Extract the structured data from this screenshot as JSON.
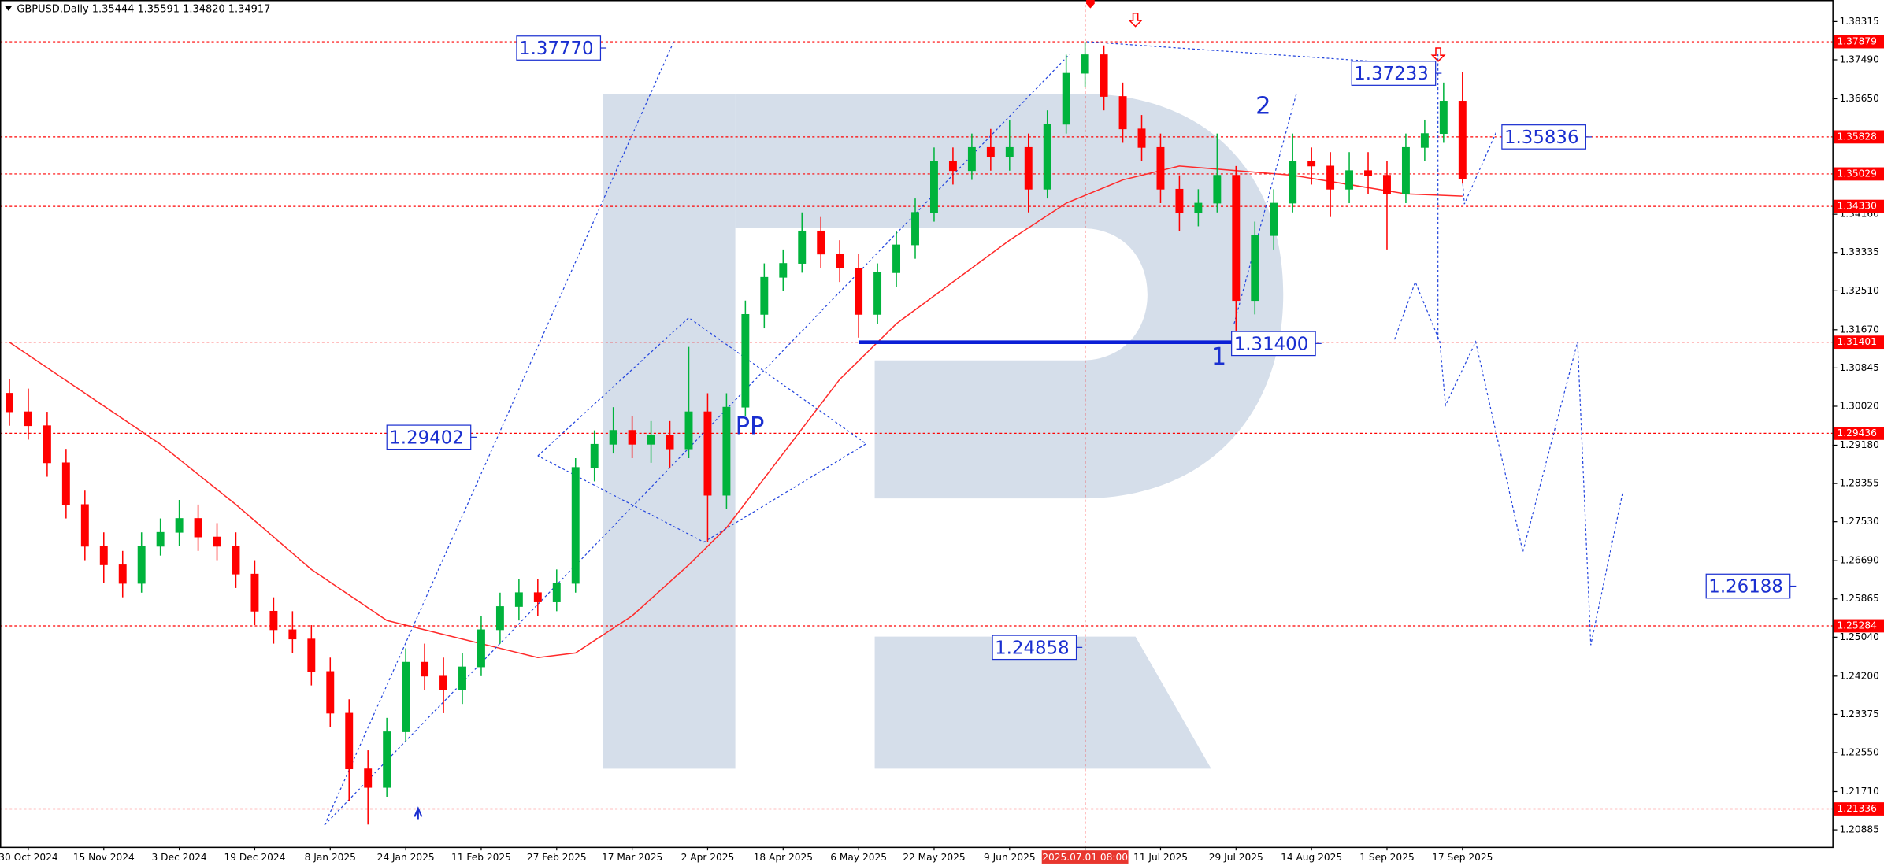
{
  "chart_data": {
    "type": "candlestick",
    "title": "GBPUSD,Daily  1.35444 1.35591 1.34820 1.34917",
    "categories": [
      null,
      "30 Oct 2024",
      null,
      null,
      null,
      "15 Nov 2024",
      null,
      null,
      null,
      "3 Dec 2024",
      null,
      null,
      null,
      "19 Dec 2024",
      null,
      null,
      null,
      "8 Jan 2025",
      null,
      null,
      null,
      "24 Jan 2025",
      null,
      null,
      null,
      "11 Feb 2025",
      null,
      null,
      null,
      "27 Feb 2025",
      null,
      null,
      null,
      "17 Mar 2025",
      null,
      null,
      null,
      "2 Apr 2025",
      null,
      null,
      null,
      "18 Apr 2025",
      null,
      null,
      null,
      "6 May 2025",
      null,
      null,
      null,
      "22 May 2025",
      null,
      null,
      null,
      "9 Jun 2025",
      null,
      null,
      null,
      "2025.07.01 08:00",
      null,
      null,
      null,
      "11 Jul 2025",
      null,
      null,
      null,
      "29 Jul 2025",
      null,
      null,
      null,
      "14 Aug 2025",
      null,
      null,
      null,
      "1 Sep 2025",
      null,
      null,
      null,
      "17 Sep 2025"
    ],
    "open": [
      1.303,
      1.299,
      1.296,
      1.288,
      1.279,
      1.27,
      1.266,
      1.262,
      1.27,
      1.273,
      1.276,
      1.272,
      1.27,
      1.264,
      1.256,
      1.252,
      1.25,
      1.243,
      1.234,
      1.222,
      1.218,
      1.23,
      1.245,
      1.242,
      1.239,
      1.244,
      1.252,
      1.257,
      1.26,
      1.258,
      1.262,
      1.287,
      1.292,
      1.295,
      1.292,
      1.294,
      1.291,
      1.299,
      1.281,
      1.3,
      1.32,
      1.328,
      1.331,
      1.338,
      1.333,
      1.33,
      1.32,
      1.329,
      1.335,
      1.342,
      1.353,
      1.351,
      1.356,
      1.354,
      1.356,
      1.347,
      1.361,
      1.372,
      1.376,
      1.367,
      1.36,
      1.356,
      1.347,
      1.342,
      1.344,
      1.35,
      1.323,
      1.337,
      1.344,
      1.353,
      1.352,
      1.347,
      1.351,
      1.35,
      1.346,
      1.356,
      1.359,
      1.366
    ],
    "high": [
      1.306,
      1.304,
      1.299,
      1.291,
      1.282,
      1.273,
      1.269,
      1.273,
      1.276,
      1.28,
      1.279,
      1.275,
      1.273,
      1.267,
      1.259,
      1.256,
      1.253,
      1.246,
      1.237,
      1.226,
      1.233,
      1.248,
      1.249,
      1.246,
      1.247,
      1.255,
      1.26,
      1.263,
      1.263,
      1.265,
      1.289,
      1.295,
      1.3,
      1.298,
      1.297,
      1.297,
      1.313,
      1.303,
      1.303,
      1.323,
      1.331,
      1.334,
      1.342,
      1.341,
      1.336,
      1.333,
      1.331,
      1.338,
      1.345,
      1.356,
      1.356,
      1.359,
      1.36,
      1.362,
      1.359,
      1.364,
      1.376,
      1.3788,
      1.378,
      1.37,
      1.363,
      1.359,
      1.35,
      1.347,
      1.359,
      1.352,
      1.34,
      1.347,
      1.359,
      1.356,
      1.355,
      1.355,
      1.355,
      1.353,
      1.359,
      1.362,
      1.37,
      1.3723
    ],
    "low": [
      1.296,
      1.293,
      1.285,
      1.276,
      1.267,
      1.262,
      1.259,
      1.26,
      1.268,
      1.27,
      1.269,
      1.267,
      1.261,
      1.253,
      1.249,
      1.247,
      1.24,
      1.231,
      1.215,
      1.21,
      1.216,
      1.228,
      1.239,
      1.234,
      1.236,
      1.242,
      1.249,
      1.254,
      1.255,
      1.256,
      1.26,
      1.284,
      1.29,
      1.289,
      1.288,
      1.287,
      1.289,
      1.271,
      1.278,
      1.298,
      1.317,
      1.325,
      1.329,
      1.33,
      1.327,
      1.315,
      1.318,
      1.326,
      1.332,
      1.34,
      1.348,
      1.349,
      1.351,
      1.351,
      1.342,
      1.345,
      1.359,
      1.369,
      1.364,
      1.357,
      1.353,
      1.344,
      1.338,
      1.339,
      1.342,
      1.315,
      1.32,
      1.334,
      1.342,
      1.348,
      1.341,
      1.344,
      1.346,
      1.334,
      1.344,
      1.353,
      1.357,
      1.3482
    ],
    "close": [
      1.299,
      1.296,
      1.288,
      1.279,
      1.27,
      1.266,
      1.262,
      1.27,
      1.273,
      1.276,
      1.272,
      1.27,
      1.264,
      1.256,
      1.252,
      1.25,
      1.243,
      1.234,
      1.222,
      1.218,
      1.23,
      1.245,
      1.242,
      1.239,
      1.244,
      1.252,
      1.257,
      1.26,
      1.258,
      1.262,
      1.287,
      1.292,
      1.295,
      1.292,
      1.294,
      1.291,
      1.299,
      1.281,
      1.3,
      1.32,
      1.328,
      1.331,
      1.338,
      1.333,
      1.33,
      1.32,
      1.329,
      1.335,
      1.342,
      1.353,
      1.351,
      1.356,
      1.354,
      1.356,
      1.347,
      1.361,
      1.372,
      1.376,
      1.367,
      1.36,
      1.356,
      1.347,
      1.342,
      1.344,
      1.35,
      1.323,
      1.337,
      1.344,
      1.353,
      1.352,
      1.347,
      1.351,
      1.35,
      1.346,
      1.356,
      1.359,
      1.366,
      1.3492
    ],
    "up_color": "#00b33c",
    "down_color": "#ff0000",
    "ma": {
      "color": "#ff2a2a",
      "x": [
        0,
        4,
        8,
        12,
        16,
        20,
        24,
        28,
        30,
        33,
        36,
        38,
        41,
        44,
        47,
        50,
        53,
        56,
        59,
        62,
        65,
        68,
        71,
        74,
        77
      ],
      "values": [
        1.314,
        1.303,
        1.292,
        1.279,
        1.265,
        1.254,
        1.25,
        1.246,
        1.247,
        1.255,
        1.266,
        1.274,
        1.29,
        1.306,
        1.318,
        1.327,
        1.336,
        1.344,
        1.349,
        1.352,
        1.351,
        1.35,
        1.348,
        1.346,
        1.3455
      ]
    },
    "levels": [
      1.37879,
      1.35828,
      1.35029,
      {
        "value": 1.3433,
        "label": "1.34330"
      },
      1.31401,
      1.29436,
      1.25284,
      1.21336
    ],
    "level_color": "#ff0000",
    "drawings": [
      {
        "color": "#2244dd",
        "dashed": true,
        "x": [
          77,
          77.1,
          78.8
        ],
        "values": [
          1.3492,
          1.3438,
          1.3594
        ]
      },
      {
        "color": "#2244dd",
        "dashed": true,
        "x": [
          73.4,
          74.5,
          75.8,
          76.1,
          77.7,
          80.2,
          83.1,
          83.8,
          85.5
        ],
        "values": [
          1.3146,
          1.327,
          1.3141,
          1.3004,
          1.3141,
          1.2688,
          1.3141,
          1.2487,
          1.2818
        ]
      },
      {
        "color": "#2244dd",
        "dashed": true,
        "x": [
          75.7,
          75.7
        ],
        "values": [
          1.3762,
          1.3141
        ]
      },
      {
        "color": "#2244dd",
        "dashed": true,
        "x": [
          64.9,
          68.2
        ],
        "values": [
          1.318,
          1.3676
        ]
      },
      {
        "color": "#2244dd",
        "dashed": true,
        "x": [
          57.1,
          75.7
        ],
        "values": [
          1.3788,
          1.3736
        ]
      },
      {
        "color": "#2244dd",
        "dashed": true,
        "x": [
          16.7,
          35.2
        ],
        "values": [
          1.2099,
          1.3788
        ]
      },
      {
        "color": "#2244dd",
        "dashed": true,
        "x": [
          16.7,
          56.2
        ],
        "values": [
          1.2099,
          1.3762
        ]
      },
      {
        "color": "#2244dd",
        "dashed": true,
        "x": [
          28.0,
          36.0,
          45.4,
          36.8,
          28.0
        ],
        "values": [
          1.2895,
          1.3193,
          1.2921,
          1.2709,
          1.2895
        ]
      },
      {
        "color": "#0b1fd6",
        "dashed": false,
        "x": [
          45.0,
          64.9
        ],
        "values": [
          1.314,
          1.314
        ]
      }
    ],
    "annotations": [
      "1.37770",
      "1.37233",
      "1.35836",
      "1.29402",
      "1.31400",
      "1.24858",
      "1.26188"
    ],
    "wave_labels": [
      "PP",
      "1",
      "2"
    ],
    "xlim": [
      -0.5,
      96.6
    ],
    "ylim": [
      1.2052,
      1.3878
    ],
    "yticks": [
      1.38315,
      {
        "value": 1.3749,
        "label": "1.37490"
      },
      {
        "value": 1.3665,
        "label": "1.36650"
      },
      {
        "value": 1.3416,
        "label": "1.34160"
      },
      1.33335,
      {
        "value": 1.3251,
        "label": "1.32510"
      },
      {
        "value": 1.3167,
        "label": "1.31670"
      },
      1.30845,
      {
        "value": 1.3002,
        "label": "1.30020"
      },
      {
        "value": 1.2918,
        "label": "1.29180"
      },
      1.28355,
      {
        "value": 1.2753,
        "label": "1.27530"
      },
      {
        "value": 1.2669,
        "label": "1.26690"
      },
      1.25865,
      {
        "value": 1.2504,
        "label": "1.25040"
      },
      {
        "value": 1.242,
        "label": "1.24200"
      },
      1.23375,
      {
        "value": 1.2255,
        "label": "1.22550"
      },
      {
        "value": 1.2171,
        "label": "1.21710"
      },
      1.20885
    ]
  }
}
